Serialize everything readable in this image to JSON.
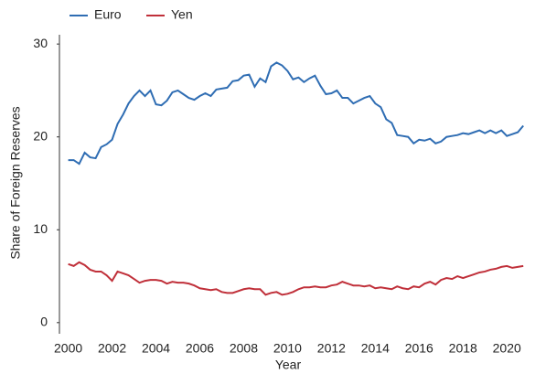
{
  "chart_data": {
    "type": "line",
    "x_label": "Year",
    "y_label": "Share of Foreign Reserves",
    "x": [
      2000,
      2000.25,
      2000.5,
      2000.75,
      2001,
      2001.25,
      2001.5,
      2001.75,
      2002,
      2002.25,
      2002.5,
      2002.75,
      2003,
      2003.25,
      2003.5,
      2003.75,
      2004,
      2004.25,
      2004.5,
      2004.75,
      2005,
      2005.25,
      2005.5,
      2005.75,
      2006,
      2006.25,
      2006.5,
      2006.75,
      2007,
      2007.25,
      2007.5,
      2007.75,
      2008,
      2008.25,
      2008.5,
      2008.75,
      2009,
      2009.25,
      2009.5,
      2009.75,
      2010,
      2010.25,
      2010.5,
      2010.75,
      2011,
      2011.25,
      2011.5,
      2011.75,
      2012,
      2012.25,
      2012.5,
      2012.75,
      2013,
      2013.25,
      2013.5,
      2013.75,
      2014,
      2014.25,
      2014.5,
      2014.75,
      2015,
      2015.25,
      2015.5,
      2015.75,
      2016,
      2016.25,
      2016.5,
      2016.75,
      2017,
      2017.25,
      2017.5,
      2017.75,
      2018,
      2018.25,
      2018.5,
      2018.75,
      2019,
      2019.25,
      2019.5,
      2019.75,
      2020,
      2020.25,
      2020.5,
      2020.75
    ],
    "series": [
      {
        "name": "Euro",
        "color": "#2f6db3",
        "values": [
          17.5,
          17.5,
          17.1,
          18.3,
          17.8,
          17.7,
          18.9,
          19.2,
          19.7,
          21.4,
          22.4,
          23.6,
          24.4,
          25.0,
          24.4,
          25.0,
          23.5,
          23.4,
          23.9,
          24.8,
          25.0,
          24.6,
          24.2,
          24.0,
          24.4,
          24.7,
          24.4,
          25.1,
          25.2,
          25.3,
          26.0,
          26.1,
          26.6,
          26.7,
          25.4,
          26.3,
          25.9,
          27.6,
          28.0,
          27.7,
          27.1,
          26.2,
          26.4,
          25.9,
          26.3,
          26.6,
          25.5,
          24.6,
          24.7,
          25.0,
          24.2,
          24.2,
          23.6,
          23.9,
          24.2,
          24.4,
          23.6,
          23.2,
          21.9,
          21.5,
          20.2,
          20.1,
          20.0,
          19.3,
          19.7,
          19.6,
          19.8,
          19.3,
          19.5,
          20.0,
          20.1,
          20.2,
          20.4,
          20.3,
          20.5,
          20.7,
          20.4,
          20.7,
          20.4,
          20.7,
          20.1,
          20.3,
          20.5,
          21.2
        ]
      },
      {
        "name": "Yen",
        "color": "#c0303a",
        "values": [
          6.3,
          6.1,
          6.5,
          6.2,
          5.7,
          5.5,
          5.5,
          5.1,
          4.5,
          5.5,
          5.3,
          5.1,
          4.7,
          4.3,
          4.5,
          4.6,
          4.6,
          4.5,
          4.2,
          4.4,
          4.3,
          4.3,
          4.2,
          4.0,
          3.7,
          3.6,
          3.5,
          3.6,
          3.3,
          3.2,
          3.2,
          3.4,
          3.6,
          3.7,
          3.6,
          3.6,
          3.0,
          3.2,
          3.3,
          3.0,
          3.1,
          3.3,
          3.6,
          3.8,
          3.8,
          3.9,
          3.8,
          3.8,
          4.0,
          4.1,
          4.4,
          4.2,
          4.0,
          4.0,
          3.9,
          4.0,
          3.7,
          3.8,
          3.7,
          3.6,
          3.9,
          3.7,
          3.6,
          3.9,
          3.8,
          4.2,
          4.4,
          4.1,
          4.6,
          4.8,
          4.7,
          5.0,
          4.8,
          5.0,
          5.2,
          5.4,
          5.5,
          5.7,
          5.8,
          6.0,
          6.1,
          5.9,
          6.0,
          6.1
        ]
      }
    ],
    "xlim": [
      1999.6,
      2021.2
    ],
    "xticks": [
      2000,
      2002,
      2004,
      2006,
      2008,
      2010,
      2012,
      2014,
      2016,
      2018,
      2020
    ],
    "ylim": [
      -1.2,
      31
    ],
    "yticks": [
      0,
      10,
      20,
      30
    ],
    "grid": false,
    "legend": "top-left"
  }
}
